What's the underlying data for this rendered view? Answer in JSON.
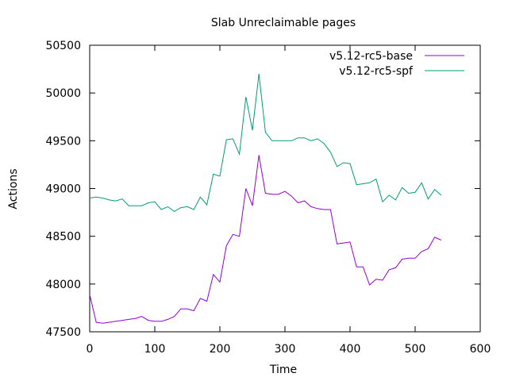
{
  "chart_data": {
    "type": "line",
    "title": "Slab Unreclaimable pages",
    "xlabel": "Time",
    "ylabel": "Actions",
    "xlim": [
      0,
      600
    ],
    "ylim": [
      47500,
      50500
    ],
    "xticks": [
      0,
      100,
      200,
      300,
      400,
      500,
      600
    ],
    "yticks": [
      47500,
      48000,
      48500,
      49000,
      49500,
      50000,
      50500
    ],
    "grid": false,
    "legend_position": "top-right",
    "series": [
      {
        "name": "v5.12-rc5-base",
        "color": "#9400d3",
        "x": [
          0,
          10,
          20,
          30,
          40,
          50,
          60,
          70,
          80,
          90,
          100,
          110,
          120,
          130,
          140,
          150,
          160,
          170,
          180,
          190,
          200,
          210,
          220,
          230,
          240,
          250,
          260,
          270,
          280,
          290,
          300,
          310,
          320,
          330,
          340,
          350,
          360,
          370,
          380,
          390,
          400,
          410,
          420,
          430,
          440,
          450,
          460,
          470,
          480,
          490,
          500,
          510,
          520,
          530,
          540
        ],
        "y": [
          47890,
          47600,
          47590,
          47600,
          47610,
          47620,
          47630,
          47640,
          47660,
          47620,
          47610,
          47610,
          47630,
          47660,
          47740,
          47740,
          47720,
          47850,
          47820,
          48100,
          48020,
          48400,
          48520,
          48500,
          49000,
          48820,
          49350,
          48950,
          48940,
          48940,
          48970,
          48920,
          48850,
          48870,
          48810,
          48790,
          48780,
          48780,
          48420,
          48430,
          48440,
          48180,
          48180,
          47990,
          48050,
          48040,
          48150,
          48170,
          48260,
          48270,
          48270,
          48340,
          48370,
          48490,
          48460
        ]
      },
      {
        "name": "v5.12-rc5-spf",
        "color": "#009e73",
        "x": [
          0,
          10,
          20,
          30,
          40,
          50,
          60,
          70,
          80,
          90,
          100,
          110,
          120,
          130,
          140,
          150,
          160,
          170,
          180,
          190,
          200,
          210,
          220,
          230,
          240,
          250,
          260,
          270,
          280,
          290,
          300,
          310,
          320,
          330,
          340,
          350,
          360,
          370,
          380,
          390,
          400,
          410,
          420,
          430,
          440,
          450,
          460,
          470,
          480,
          490,
          500,
          510,
          520,
          530,
          540
        ],
        "y": [
          48900,
          48910,
          48900,
          48880,
          48870,
          48890,
          48820,
          48820,
          48820,
          48850,
          48860,
          48780,
          48810,
          48760,
          48800,
          48810,
          48780,
          48910,
          48830,
          49150,
          49130,
          49510,
          49520,
          49360,
          49960,
          49610,
          50200,
          49590,
          49500,
          49500,
          49500,
          49500,
          49530,
          49530,
          49500,
          49520,
          49470,
          49380,
          49230,
          49270,
          49260,
          49040,
          49050,
          49060,
          49100,
          48860,
          48930,
          48880,
          49010,
          48950,
          48960,
          49060,
          48890,
          48990,
          48930
        ]
      }
    ]
  }
}
